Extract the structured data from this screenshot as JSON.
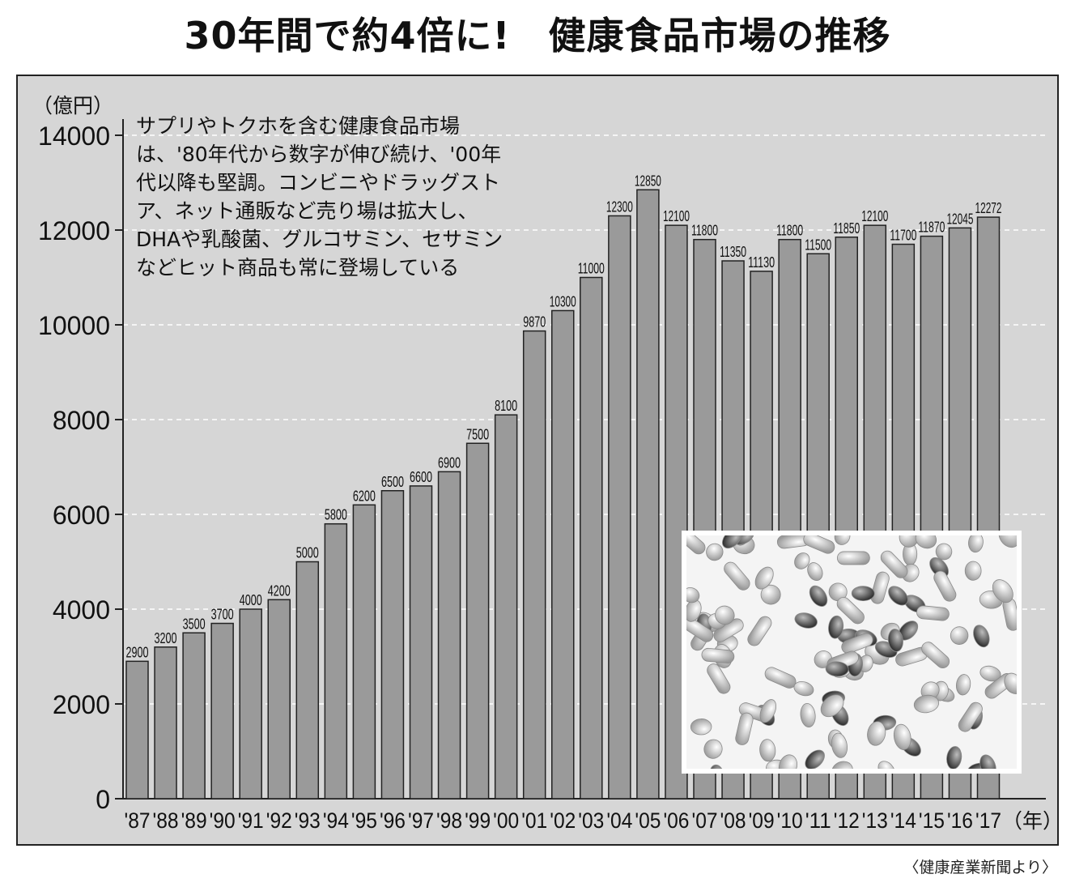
{
  "title": "30年間で約4倍に!　健康食品市場の推移",
  "note": "サプリやトクホを含む健康食品市場は、'80年代から数字が伸び続け、'00年代以降も堅調。コンビニやドラッグストア、ネット通販など売り場は拡大し、DHAや乳酸菌、グルコサミン、セサミンなどヒット商品も常に登場している",
  "source": "〈健康産業新聞より〉",
  "photo_icon": "pills-photo",
  "colors": {
    "bar": "#9a9a9a",
    "background": "#d6d6d6",
    "grid": "#ffffff"
  },
  "chart_data": {
    "type": "bar",
    "categories": [
      "'87",
      "'88",
      "'89",
      "'90",
      "'91",
      "'92",
      "'93",
      "'94",
      "'95",
      "'96",
      "'97",
      "'98",
      "'99",
      "'00",
      "'01",
      "'02",
      "'03",
      "'04",
      "'05",
      "'06",
      "'07",
      "'08",
      "'09",
      "'10",
      "'11",
      "'12",
      "'13",
      "'14",
      "'15",
      "'16",
      "'17"
    ],
    "values": [
      2900,
      3200,
      3500,
      3700,
      4000,
      4200,
      5000,
      5800,
      6200,
      6500,
      6600,
      6900,
      7500,
      8100,
      9870,
      10300,
      11000,
      12300,
      12850,
      12100,
      11800,
      11350,
      11130,
      11800,
      11500,
      11850,
      12100,
      11700,
      11870,
      12045,
      12272
    ],
    "ylabel": "（億円）",
    "xlabel": "（年）",
    "ylim": [
      0,
      14000
    ],
    "yticks": [
      0,
      2000,
      4000,
      6000,
      8000,
      10000,
      12000,
      14000
    ],
    "grid": true
  }
}
